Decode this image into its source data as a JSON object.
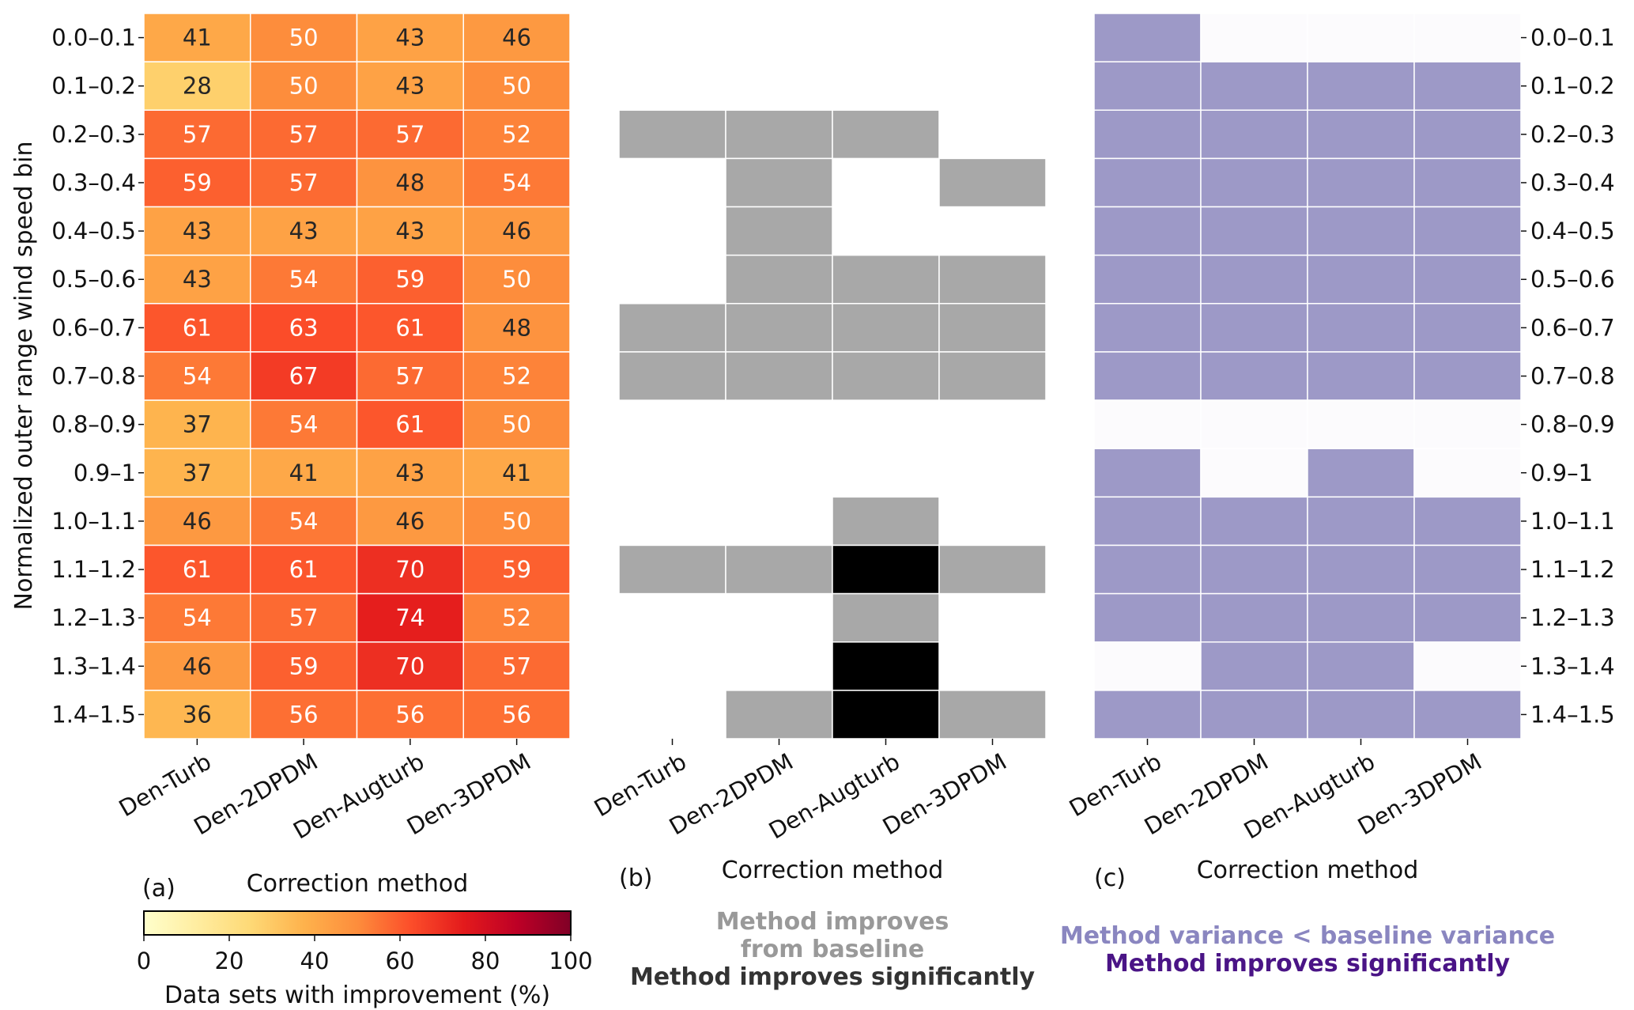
{
  "chart_data": [
    {
      "id": "a",
      "type": "heatmap",
      "panel_label": "(a)",
      "title": "",
      "xlabel": "Correction method",
      "ylabel": "Normalized outer range wind speed bin",
      "x_categories": [
        "Den-Turb",
        "Den-2DPDM",
        "Den-Augturb",
        "Den-3DPDM"
      ],
      "y_categories": [
        "0.0–0.1",
        "0.1–0.2",
        "0.2–0.3",
        "0.3–0.4",
        "0.4–0.5",
        "0.5–0.6",
        "0.6–0.7",
        "0.7–0.8",
        "0.8–0.9",
        "0.9–1",
        "1.0–1.1",
        "1.1–1.2",
        "1.2–1.3",
        "1.3–1.4",
        "1.4–1.5"
      ],
      "values": [
        [
          41,
          50,
          43,
          46
        ],
        [
          28,
          50,
          43,
          50
        ],
        [
          57,
          57,
          57,
          52
        ],
        [
          59,
          57,
          48,
          54
        ],
        [
          43,
          43,
          43,
          46
        ],
        [
          43,
          54,
          59,
          50
        ],
        [
          61,
          63,
          61,
          48
        ],
        [
          54,
          67,
          57,
          52
        ],
        [
          37,
          54,
          61,
          50
        ],
        [
          37,
          41,
          43,
          41
        ],
        [
          46,
          54,
          46,
          50
        ],
        [
          61,
          61,
          70,
          59
        ],
        [
          54,
          57,
          74,
          52
        ],
        [
          46,
          59,
          70,
          57
        ],
        [
          36,
          56,
          56,
          56
        ]
      ],
      "annotated": true,
      "colormap": "YlOrRd",
      "colorbar": {
        "label": "Data sets with improvement (%)",
        "range": [
          0,
          100
        ],
        "ticks": [
          "0",
          "20",
          "40",
          "60",
          "80",
          "100"
        ],
        "orientation": "horizontal",
        "placement": "bottom"
      },
      "text_colors": {
        "dark": "#262626",
        "light": "#ffffff"
      }
    },
    {
      "id": "b",
      "type": "heatmap",
      "panel_label": "(b)",
      "xlabel": "Correction method",
      "x_categories": [
        "Den-Turb",
        "Den-2DPDM",
        "Den-Augturb",
        "Den-3DPDM"
      ],
      "y_categories": [
        "0.0–0.1",
        "0.1–0.2",
        "0.2–0.3",
        "0.3–0.4",
        "0.4–0.5",
        "0.5–0.6",
        "0.6–0.7",
        "0.7–0.8",
        "0.8–0.9",
        "0.9–1",
        "1.0–1.1",
        "1.1–1.2",
        "1.2–1.3",
        "1.3–1.4",
        "1.4–1.5"
      ],
      "encoding": "0 = no improvement, 1 = method improves from baseline, 2 = method improves significantly",
      "values": [
        [
          0,
          0,
          0,
          0
        ],
        [
          0,
          0,
          0,
          0
        ],
        [
          1,
          1,
          1,
          0
        ],
        [
          0,
          1,
          0,
          1
        ],
        [
          0,
          1,
          0,
          0
        ],
        [
          0,
          1,
          1,
          1
        ],
        [
          1,
          1,
          1,
          1
        ],
        [
          1,
          1,
          1,
          1
        ],
        [
          0,
          0,
          0,
          0
        ],
        [
          0,
          0,
          0,
          0
        ],
        [
          0,
          0,
          1,
          0
        ],
        [
          1,
          1,
          2,
          1
        ],
        [
          0,
          0,
          1,
          0
        ],
        [
          0,
          0,
          2,
          0
        ],
        [
          0,
          1,
          2,
          1
        ]
      ],
      "category_colors": [
        "#ffffff",
        "#a8a8a8",
        "#000000"
      ],
      "legend": [
        {
          "text": "Method improves",
          "color": "#999999"
        },
        {
          "text": "from baseline",
          "color": "#999999"
        },
        {
          "text": "Method improves significantly",
          "color": "#333333"
        }
      ]
    },
    {
      "id": "c",
      "type": "heatmap",
      "panel_label": "(c)",
      "xlabel": "Correction method",
      "x_categories": [
        "Den-Turb",
        "Den-2DPDM",
        "Den-Augturb",
        "Den-3DPDM"
      ],
      "y_categories": [
        "0.0–0.1",
        "0.1–0.2",
        "0.2–0.3",
        "0.3–0.4",
        "0.4–0.5",
        "0.5–0.6",
        "0.6–0.7",
        "0.7–0.8",
        "0.8–0.9",
        "0.9–1",
        "1.0–1.1",
        "1.1–1.2",
        "1.2–1.3",
        "1.3–1.4",
        "1.4–1.5"
      ],
      "y_axis_side": "right",
      "encoding": "0 = no, 1 = method variance < baseline variance",
      "values": [
        [
          1,
          0,
          0,
          0
        ],
        [
          1,
          1,
          1,
          1
        ],
        [
          1,
          1,
          1,
          1
        ],
        [
          1,
          1,
          1,
          1
        ],
        [
          1,
          1,
          1,
          1
        ],
        [
          1,
          1,
          1,
          1
        ],
        [
          1,
          1,
          1,
          1
        ],
        [
          1,
          1,
          1,
          1
        ],
        [
          0,
          0,
          0,
          0
        ],
        [
          1,
          0,
          1,
          0
        ],
        [
          1,
          1,
          1,
          1
        ],
        [
          1,
          1,
          1,
          1
        ],
        [
          1,
          1,
          1,
          1
        ],
        [
          0,
          1,
          1,
          0
        ],
        [
          1,
          1,
          1,
          1
        ]
      ],
      "category_colors": [
        "#fcfbfd",
        "#9d99c7",
        "#4a1486"
      ],
      "legend": [
        {
          "text": "Method variance < baseline variance",
          "color": "#8a86c0"
        },
        {
          "text": "Method improves significantly",
          "color": "#4a1486"
        }
      ]
    }
  ]
}
